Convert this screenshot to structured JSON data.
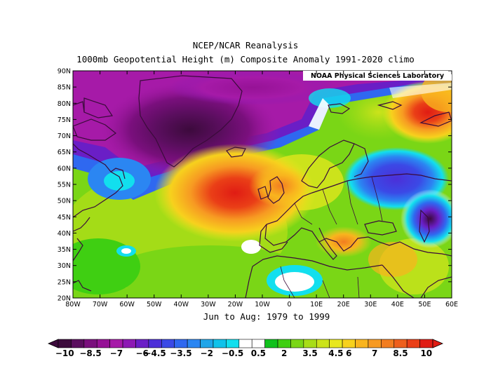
{
  "header": {
    "line1": "NCEP/NCAR Reanalysis",
    "line2": "1000mb Geopotential Height (m) Composite Anomaly 1991-2020 climo"
  },
  "credit": "NOAA Physical Sciences Laboratory",
  "period": "Jun to Aug: 1979 to 1999",
  "map": {
    "lat_labels": [
      "90N",
      "85N",
      "80N",
      "75N",
      "70N",
      "65N",
      "60N",
      "55N",
      "50N",
      "45N",
      "40N",
      "35N",
      "30N",
      "25N",
      "20N"
    ],
    "lon_labels": [
      "80W",
      "70W",
      "60W",
      "50W",
      "40W",
      "30W",
      "20W",
      "10W",
      "0",
      "10E",
      "20E",
      "30E",
      "40E",
      "50E",
      "60E"
    ],
    "lat_range": [
      20,
      90
    ],
    "lon_range": [
      -80,
      60
    ]
  },
  "colorbar": {
    "labels": [
      "−10",
      "−8.5",
      "−7",
      "−6",
      "−4.5",
      "−3.5",
      "−2",
      "−0.5",
      "0.5",
      "2",
      "3.5",
      "4.5",
      "6",
      "7",
      "8.5",
      "10"
    ],
    "colors": [
      "#3c0a3c",
      "#5a0e5e",
      "#7a0f7d",
      "#961296",
      "#a61aa8",
      "#8d19b4",
      "#6a1ec6",
      "#4c2fd8",
      "#3b49e6",
      "#2f68f0",
      "#2b86f2",
      "#1fa5e8",
      "#10c2ea",
      "#12dfee",
      "#ffffff",
      "#ffffff",
      "#10c11c",
      "#3fcf12",
      "#7ad616",
      "#a8dd17",
      "#cce31b",
      "#e8e71f",
      "#f7d11d",
      "#f9b41e",
      "#f79a22",
      "#f27d20",
      "#ee5f1c",
      "#ea3f17",
      "#e01c14"
    ]
  },
  "anomaly_fields": [
    {
      "name": "greenland-low",
      "lon": -35,
      "lat": 77,
      "value": -10
    },
    {
      "name": "arctic-low",
      "lon": -10,
      "lat": 84,
      "value": -7
    },
    {
      "name": "labrador-low",
      "lon": -58,
      "lat": 60,
      "value": -3
    },
    {
      "name": "atlantic-high",
      "lon": -20,
      "lat": 52,
      "value": 9
    },
    {
      "name": "british-high",
      "lon": -5,
      "lat": 54,
      "value": 7
    },
    {
      "name": "russia-low",
      "lon": 35,
      "lat": 55,
      "value": -5
    },
    {
      "name": "caspian-low",
      "lon": 52,
      "lat": 44,
      "value": -10
    },
    {
      "name": "kara-high",
      "lon": 55,
      "lat": 77,
      "value": 8
    },
    {
      "name": "balkan-high",
      "lon": 22,
      "lat": 38,
      "value": 6
    },
    {
      "name": "sahara-low",
      "lon": 5,
      "lat": 25,
      "value": -2
    }
  ]
}
